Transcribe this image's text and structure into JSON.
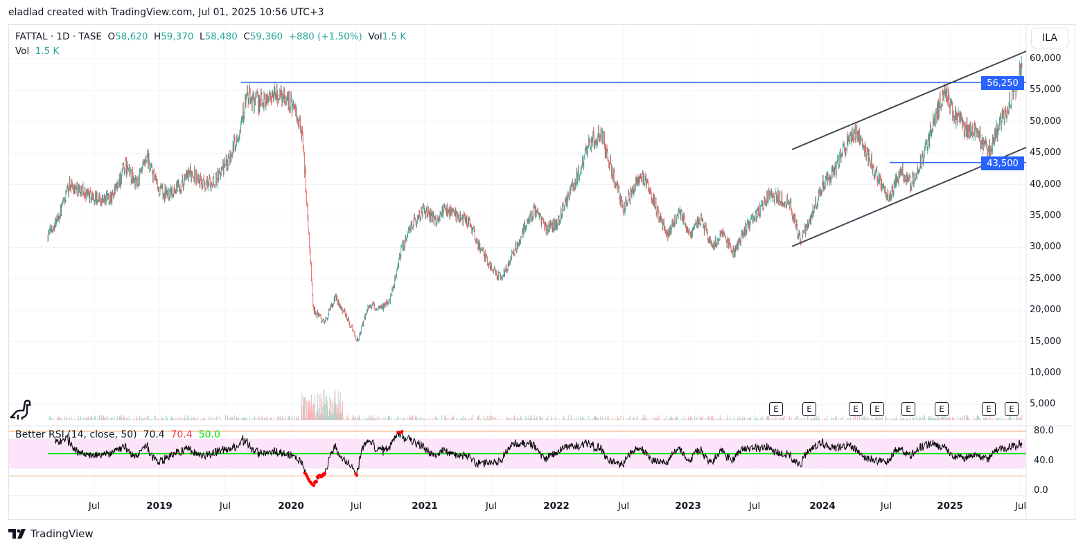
{
  "credit": "eladlad created with TradingView.com, Jul 01, 2025 10:56 UTC+3",
  "legend": {
    "symbol": "FATTAL · 1D · TASE",
    "o_label": "O",
    "o": "58,620",
    "h_label": "H",
    "h": "59,370",
    "l_label": "L",
    "l": "58,480",
    "c_label": "C",
    "c": "59,360",
    "change": "+880 (+1.50%)",
    "vol_label": "Vol",
    "vol": "1.5 K",
    "vol2_label": "Vol",
    "vol2": "1.5 K"
  },
  "rsi_legend": {
    "name": "Better RSI (14, close, 50)",
    "v1": "70.4",
    "v2": "70.4",
    "v3": "50.0"
  },
  "currency": "ILA",
  "price_labels": [
    "60,000",
    "55,000",
    "50,000",
    "45,000",
    "40,000",
    "35,000",
    "30,000",
    "25,000",
    "20,000",
    "15,000",
    "10,000",
    "5,000"
  ],
  "rsi_labels": [
    "80.0",
    "40.0",
    "0.0"
  ],
  "badges": [
    "56,250",
    "43,500"
  ],
  "time_labels": [
    {
      "t": "Jul",
      "b": false
    },
    {
      "t": "2019",
      "b": true
    },
    {
      "t": "Jul",
      "b": false
    },
    {
      "t": "2020",
      "b": true
    },
    {
      "t": "Jul",
      "b": false
    },
    {
      "t": "2021",
      "b": true
    },
    {
      "t": "Jul",
      "b": false
    },
    {
      "t": "2022",
      "b": true
    },
    {
      "t": "Jul",
      "b": false
    },
    {
      "t": "2023",
      "b": true
    },
    {
      "t": "Jul",
      "b": false
    },
    {
      "t": "2024",
      "b": true
    },
    {
      "t": "Jul",
      "b": false
    },
    {
      "t": "2025",
      "b": true
    },
    {
      "t": "Jul",
      "b": false
    }
  ],
  "earnings": [
    "E",
    "E",
    "E",
    "E",
    "E",
    "E",
    "E",
    "E"
  ],
  "brand": "TradingView",
  "colors": {
    "up": "#26a69a",
    "down": "#ef5350",
    "line": "#2962ff",
    "channel": "#434651"
  },
  "chart_data": {
    "type": "candlestick",
    "start": "2018-03",
    "interval": "monthly waypoints (approx close)",
    "closes": [
      32000,
      35000,
      40000,
      39000,
      38000,
      37500,
      38500,
      43000,
      40000,
      44000,
      39000,
      38500,
      40000,
      42000,
      40000,
      40500,
      43000,
      47000,
      54000,
      53000,
      54000,
      54500,
      53000,
      48000,
      20000,
      18000,
      22000,
      19000,
      15000,
      21000,
      20000,
      22000,
      30000,
      34000,
      36000,
      34500,
      36000,
      35000,
      34000,
      30000,
      27000,
      25000,
      29000,
      33000,
      36000,
      33000,
      34000,
      38000,
      42000,
      47000,
      48000,
      42000,
      36000,
      40000,
      41000,
      36000,
      32000,
      36000,
      32000,
      34500,
      30000,
      32000,
      29000,
      33000,
      35000,
      38000,
      38000,
      37000,
      31000,
      35000,
      40000,
      42000,
      46000,
      48500,
      45000,
      41000,
      38000,
      42000,
      40000,
      44000,
      50000,
      55000,
      51000,
      49000,
      48000,
      45000,
      50000,
      53000,
      59360
    ],
    "horizontal_levels": [
      56250,
      43500
    ],
    "ylim": [
      5000,
      60000
    ],
    "rsi_levels": {
      "upper": 70,
      "mid": 50,
      "lower": 30
    }
  }
}
